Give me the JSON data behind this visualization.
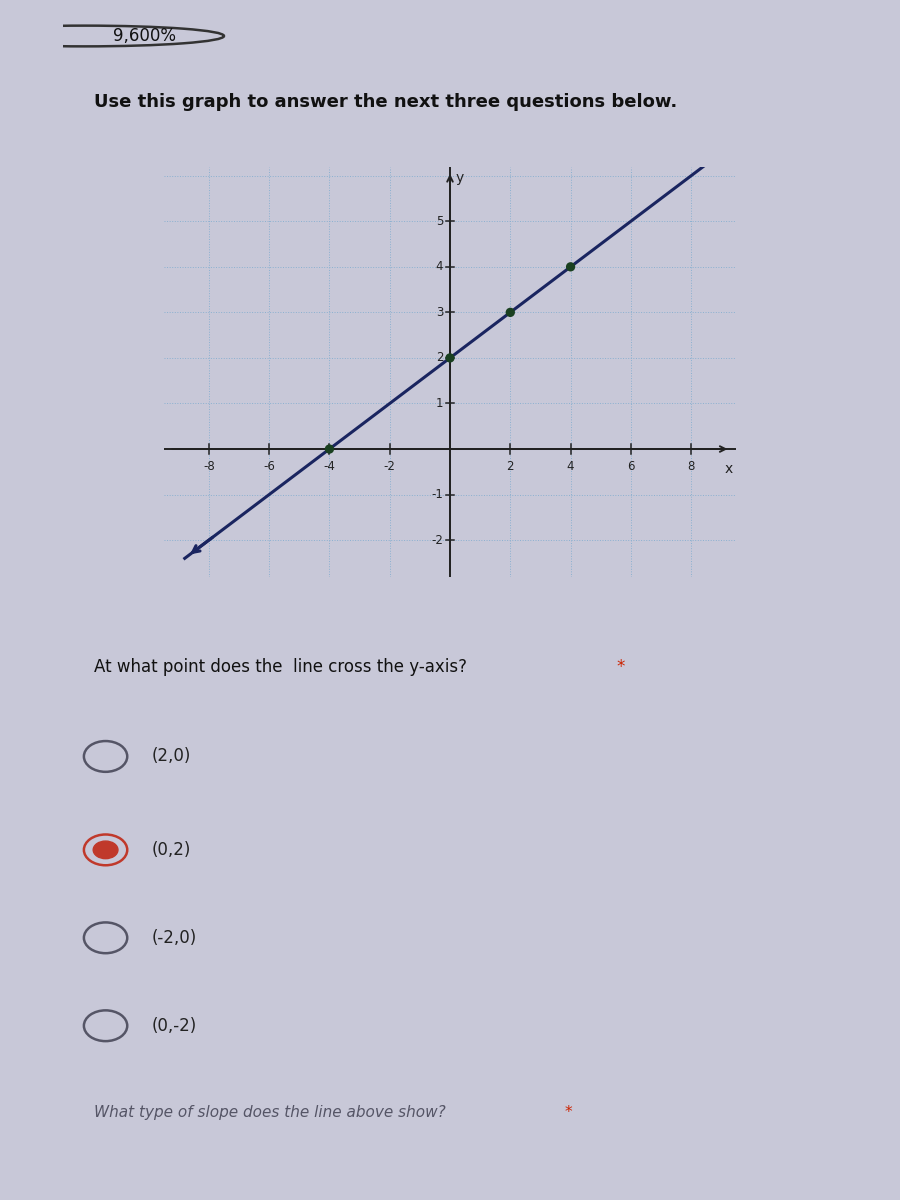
{
  "page_bg": "#c8c8d8",
  "header_card_bg": "#c0bfd0",
  "graph_card_bg": "#e8e8f0",
  "question_card_bg": "#ececf4",
  "title_text": "Use this graph to answer the next three questions below.",
  "header_text": "9,600%",
  "graph_xlim": [
    -9.5,
    9.5
  ],
  "graph_ylim": [
    -2.8,
    6.2
  ],
  "xticks": [
    -8,
    -6,
    -4,
    -2,
    2,
    4,
    6,
    8
  ],
  "yticks": [
    -2,
    -1,
    1,
    2,
    3,
    4,
    5
  ],
  "line_slope": 0.5,
  "line_intercept": 2,
  "line_color": "#1a2560",
  "line_width": 2.2,
  "dot_points": [
    [
      -4,
      0
    ],
    [
      0,
      2
    ],
    [
      2,
      3
    ],
    [
      4,
      4
    ]
  ],
  "dot_color": "#1a4020",
  "dot_size": 45,
  "grid_color": "#8ab0d0",
  "grid_linestyle": ":",
  "grid_linewidth": 0.7,
  "axis_color": "#222222",
  "tick_fontsize": 8.5,
  "axis_label_fontsize": 10,
  "question1_text": "At what point does the  line cross the y-axis?",
  "star_color": "#cc2200",
  "options": [
    "(2,0)",
    "(0,2)",
    "(-2,0)",
    "(0,-2)"
  ],
  "selected_option": 1,
  "selected_color": "#c0392b",
  "unselected_color": "#555566",
  "option_fontsize": 12,
  "question2_text": "What type of slope does the line above show? ",
  "question2_fontsize": 11,
  "question2_color": "#555566"
}
